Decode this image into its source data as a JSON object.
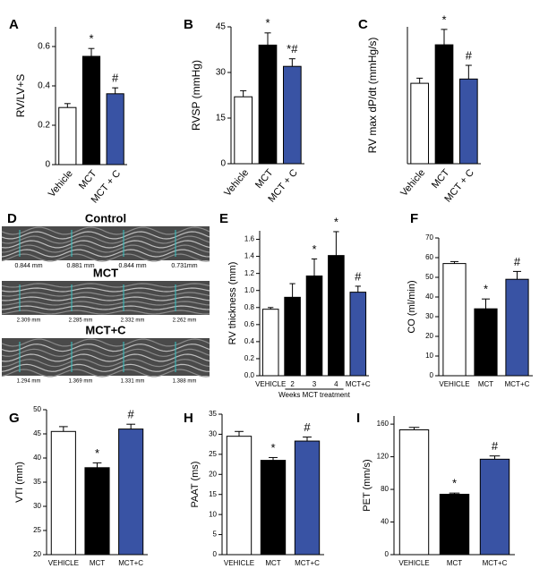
{
  "chart_data": [
    {
      "type": "bar",
      "panel": "A",
      "ylabel": "RV/LV+S",
      "categories": [
        "Vehicle",
        "MCT",
        "MCT + C"
      ],
      "values": [
        0.29,
        0.55,
        0.36
      ],
      "errors": [
        0.02,
        0.04,
        0.03
      ],
      "significance": [
        null,
        "*",
        "#"
      ],
      "colors": [
        "#ffffff",
        "#000000",
        "#3953a4"
      ],
      "ylim": [
        0,
        0.7
      ],
      "yticks": [
        0,
        0.2,
        0.4,
        0.6
      ]
    },
    {
      "type": "bar",
      "panel": "B",
      "ylabel": "RVSP (mmHg)",
      "categories": [
        "Vehicle",
        "MCT",
        "MCT + C"
      ],
      "values": [
        22,
        39,
        32
      ],
      "errors": [
        2,
        4,
        2.5
      ],
      "significance": [
        null,
        "*",
        "*#"
      ],
      "colors": [
        "#ffffff",
        "#000000",
        "#3953a4"
      ],
      "ylim": [
        0,
        45
      ],
      "yticks": [
        0,
        15,
        30,
        45
      ]
    },
    {
      "type": "bar",
      "panel": "C",
      "ylabel": "RV max dP/dt (mmHg/s)",
      "categories": [
        "Vehicle",
        "MCT",
        "MCT + C"
      ],
      "values": [
        940,
        1390,
        990
      ],
      "errors": [
        60,
        180,
        160
      ],
      "significance": [
        null,
        "*",
        "#"
      ],
      "colors": [
        "#ffffff",
        "#000000",
        "#3953a4"
      ],
      "ylim": [
        0,
        1600
      ]
    },
    {
      "type": "bar",
      "panel": "E",
      "ylabel": "RV thickness (mm)",
      "categories": [
        "VEHICLE",
        "2",
        "3",
        "4",
        "MCT+C"
      ],
      "group_label": "Weeks MCT treatment",
      "values": [
        0.78,
        0.92,
        1.17,
        1.41,
        0.98
      ],
      "errors": [
        0.02,
        0.16,
        0.2,
        0.28,
        0.07
      ],
      "significance": [
        null,
        null,
        "*",
        "*",
        "#"
      ],
      "colors": [
        "#ffffff",
        "#000000",
        "#000000",
        "#000000",
        "#3953a4"
      ],
      "ylim": [
        0,
        1.7
      ],
      "yticks": [
        {
          "value": 0,
          "label": "0.0"
        },
        0.2,
        0.4,
        0.6,
        0.8,
        {
          "value": 1,
          "label": "1.0"
        },
        1.2,
        1.4,
        1.6
      ]
    },
    {
      "type": "bar",
      "panel": "F",
      "ylabel": "CO (ml/min)",
      "categories": [
        "VEHICLE",
        "MCT",
        "MCT+C"
      ],
      "values": [
        57,
        34,
        49
      ],
      "errors": [
        1,
        5,
        4
      ],
      "significance": [
        null,
        "*",
        "#"
      ],
      "colors": [
        "#ffffff",
        "#000000",
        "#3953a4"
      ],
      "ylim": [
        0,
        70
      ],
      "yticks": [
        0,
        10,
        20,
        30,
        40,
        50,
        60,
        70
      ]
    },
    {
      "type": "bar",
      "panel": "G",
      "ylabel": "VTI (mm)",
      "categories": [
        "VEHICLE",
        "MCT",
        "MCT+C"
      ],
      "values": [
        45.5,
        38,
        46
      ],
      "errors": [
        1,
        1,
        1
      ],
      "significance": [
        null,
        "*",
        "#"
      ],
      "colors": [
        "#ffffff",
        "#000000",
        "#3953a4"
      ],
      "ylim": [
        20,
        50
      ],
      "yticks": [
        20,
        25,
        30,
        35,
        40,
        45,
        50
      ]
    },
    {
      "type": "bar",
      "panel": "H",
      "ylabel": "PAAT (ms)",
      "categories": [
        "VEHICLE",
        "MCT",
        "MCT+C"
      ],
      "values": [
        29.5,
        23.5,
        28.3
      ],
      "errors": [
        1.2,
        0.7,
        1
      ],
      "significance": [
        null,
        "*",
        "#"
      ],
      "colors": [
        "#ffffff",
        "#000000",
        "#3953a4"
      ],
      "ylim": [
        0,
        35
      ],
      "yticks": [
        0,
        5,
        10,
        15,
        20,
        25,
        30,
        35
      ]
    },
    {
      "type": "bar",
      "panel": "I",
      "ylabel": "PET (mm/s)",
      "categories": [
        "VEHICLE",
        "MCT",
        "MCT+C"
      ],
      "values": [
        153,
        74,
        117
      ],
      "errors": [
        3,
        1.5,
        4
      ],
      "significance": [
        null,
        "*",
        "#"
      ],
      "colors": [
        "#ffffff",
        "#000000",
        "#3953a4"
      ],
      "ylim": [
        0,
        170
      ],
      "yticks": [
        0,
        40,
        80,
        120,
        160
      ]
    }
  ],
  "echo_panel": {
    "panel": "D",
    "groups": [
      {
        "title": "Control",
        "measurements": [
          "0.844 mm",
          "0.881 mm",
          "0.844 mm",
          "0.731mm"
        ]
      },
      {
        "title": "MCT",
        "measurements": [
          "2.309 mm",
          "2.285 mm",
          "2.332 mm",
          "2.262 mm"
        ]
      },
      {
        "title": "MCT+C",
        "measurements": [
          "1.294 mm",
          "1.369 mm",
          "1.331 mm",
          "1.388 mm"
        ]
      }
    ]
  }
}
